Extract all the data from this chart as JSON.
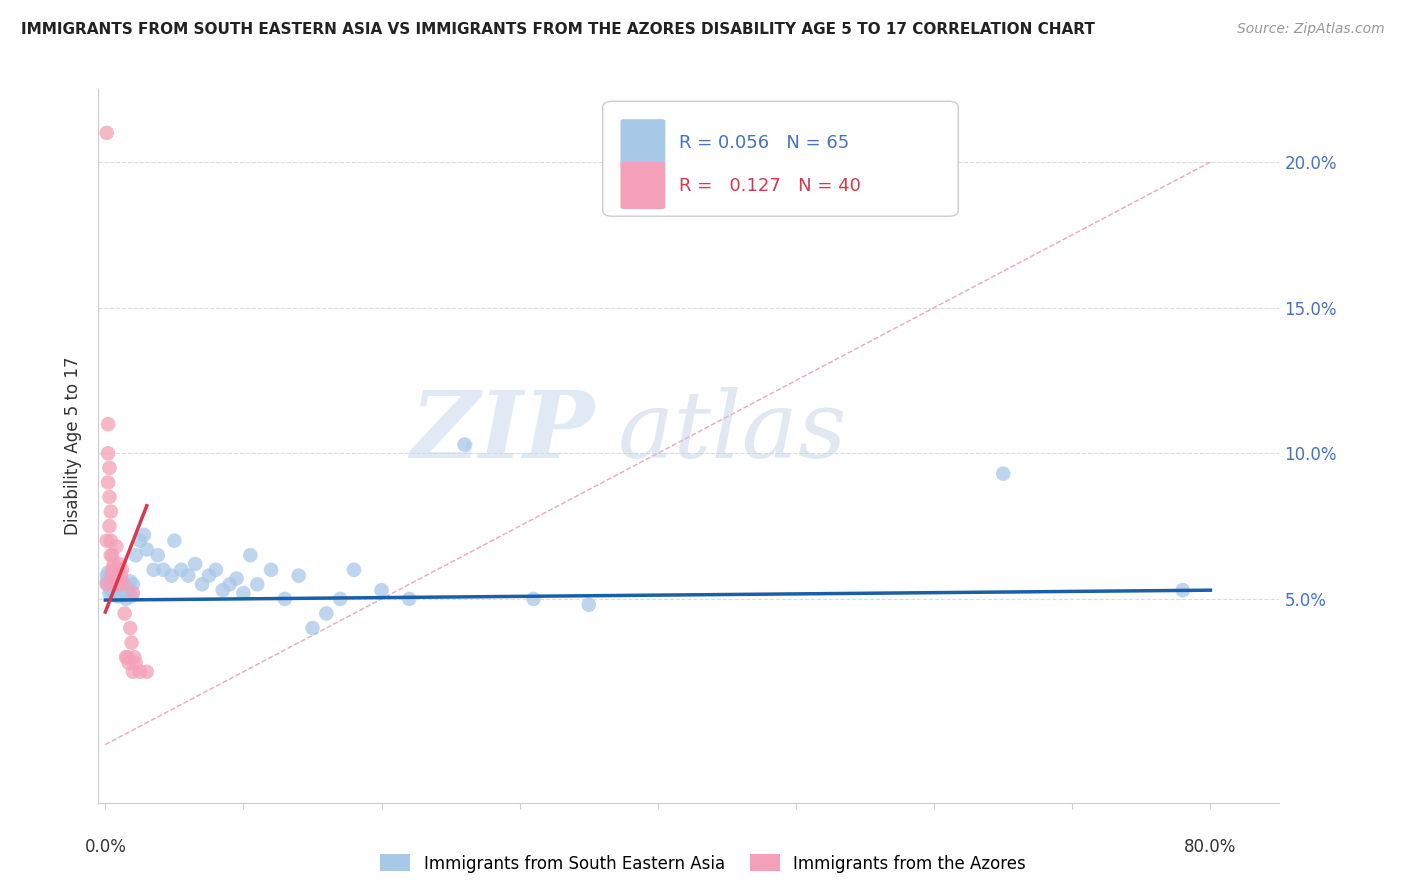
{
  "title": "IMMIGRANTS FROM SOUTH EASTERN ASIA VS IMMIGRANTS FROM THE AZORES DISABILITY AGE 5 TO 17 CORRELATION CHART",
  "source": "Source: ZipAtlas.com",
  "ylabel": "Disability Age 5 to 17",
  "yticks": [
    0.0,
    0.05,
    0.1,
    0.15,
    0.2
  ],
  "ytick_labels": [
    "",
    "5.0%",
    "10.0%",
    "15.0%",
    "20.0%"
  ],
  "xtick_labels": [
    "0.0%",
    "",
    "",
    "",
    "",
    "",
    "",
    "",
    "80.0%"
  ],
  "xlim": [
    -0.005,
    0.85
  ],
  "ylim": [
    -0.02,
    0.225
  ],
  "blue_color": "#A8C8E8",
  "pink_color": "#F4A0B8",
  "blue_line_color": "#1A5FA8",
  "pink_line_color": "#D63850",
  "diagonal_color": "#E8A0B0",
  "r_blue": 0.056,
  "n_blue": 65,
  "r_pink": 0.127,
  "n_pink": 40,
  "legend_label_blue": "Immigrants from South Eastern Asia",
  "legend_label_pink": "Immigrants from the Azores",
  "watermark_zip": "ZIP",
  "watermark_atlas": "atlas",
  "blue_line_x0": 0.0,
  "blue_line_x1": 0.8,
  "blue_line_y0": 0.0496,
  "blue_line_y1": 0.053,
  "pink_line_x0": 0.0,
  "pink_line_x1": 0.03,
  "pink_line_y0": 0.0455,
  "pink_line_y1": 0.082,
  "blue_scatter_x": [
    0.001,
    0.001,
    0.002,
    0.002,
    0.003,
    0.003,
    0.004,
    0.004,
    0.005,
    0.005,
    0.006,
    0.006,
    0.007,
    0.007,
    0.008,
    0.008,
    0.009,
    0.009,
    0.01,
    0.01,
    0.011,
    0.012,
    0.013,
    0.014,
    0.015,
    0.016,
    0.017,
    0.018,
    0.019,
    0.02,
    0.022,
    0.025,
    0.028,
    0.03,
    0.035,
    0.038,
    0.042,
    0.048,
    0.05,
    0.055,
    0.06,
    0.065,
    0.07,
    0.075,
    0.08,
    0.085,
    0.09,
    0.095,
    0.1,
    0.105,
    0.11,
    0.12,
    0.13,
    0.14,
    0.15,
    0.16,
    0.17,
    0.18,
    0.2,
    0.22,
    0.26,
    0.31,
    0.35,
    0.65,
    0.78
  ],
  "blue_scatter_y": [
    0.056,
    0.058,
    0.055,
    0.059,
    0.052,
    0.057,
    0.053,
    0.058,
    0.054,
    0.057,
    0.052,
    0.055,
    0.053,
    0.056,
    0.051,
    0.055,
    0.052,
    0.056,
    0.051,
    0.055,
    0.052,
    0.056,
    0.051,
    0.055,
    0.05,
    0.054,
    0.052,
    0.056,
    0.051,
    0.055,
    0.065,
    0.07,
    0.072,
    0.067,
    0.06,
    0.065,
    0.06,
    0.058,
    0.07,
    0.06,
    0.058,
    0.062,
    0.055,
    0.058,
    0.06,
    0.053,
    0.055,
    0.057,
    0.052,
    0.065,
    0.055,
    0.06,
    0.05,
    0.058,
    0.04,
    0.045,
    0.05,
    0.06,
    0.053,
    0.05,
    0.103,
    0.05,
    0.048,
    0.093,
    0.053
  ],
  "pink_scatter_x": [
    0.001,
    0.001,
    0.001,
    0.002,
    0.002,
    0.002,
    0.003,
    0.003,
    0.003,
    0.004,
    0.004,
    0.004,
    0.005,
    0.005,
    0.005,
    0.006,
    0.006,
    0.007,
    0.007,
    0.008,
    0.008,
    0.009,
    0.009,
    0.01,
    0.01,
    0.011,
    0.012,
    0.013,
    0.014,
    0.015,
    0.016,
    0.017,
    0.018,
    0.019,
    0.02,
    0.02,
    0.021,
    0.022,
    0.03,
    0.025
  ],
  "pink_scatter_y": [
    0.21,
    0.055,
    0.07,
    0.11,
    0.1,
    0.09,
    0.095,
    0.085,
    0.075,
    0.08,
    0.07,
    0.065,
    0.065,
    0.06,
    0.058,
    0.062,
    0.055,
    0.058,
    0.06,
    0.055,
    0.068,
    0.06,
    0.055,
    0.056,
    0.062,
    0.058,
    0.06,
    0.055,
    0.045,
    0.03,
    0.03,
    0.028,
    0.04,
    0.035,
    0.052,
    0.025,
    0.03,
    0.028,
    0.025,
    0.025
  ]
}
